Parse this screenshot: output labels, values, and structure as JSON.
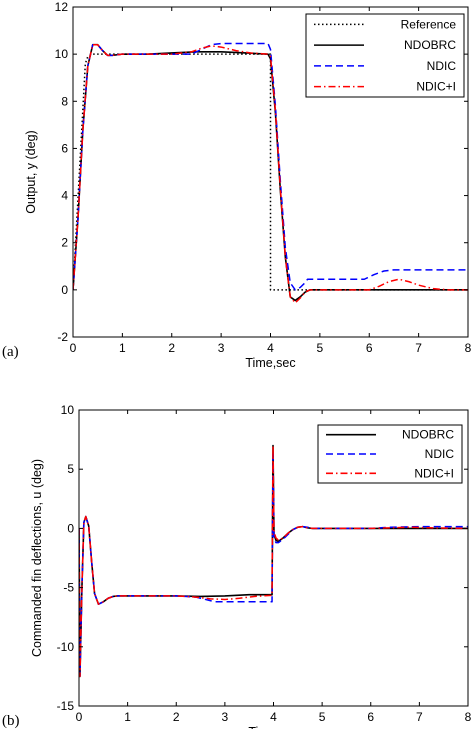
{
  "chart_data": [
    {
      "type": "line",
      "panel_label": "(a)",
      "xlabel": "Time,sec",
      "ylabel": "Output, y (deg)",
      "xlim": [
        0,
        8
      ],
      "ylim": [
        -2,
        12
      ],
      "xticks": [
        0,
        1,
        2,
        3,
        4,
        5,
        6,
        7,
        8
      ],
      "yticks": [
        -2,
        0,
        2,
        4,
        6,
        8,
        10,
        12
      ],
      "grid": false,
      "legend_position": "top-right",
      "series": [
        {
          "name": "Reference",
          "color": "#000000",
          "style": "dotted",
          "x": [
            0,
            0.25,
            0.3,
            0.4,
            0.5,
            1.0,
            2.0,
            3.0,
            4.0,
            4.0,
            5.0,
            6.0,
            7.0,
            8.0
          ],
          "y": [
            0,
            9.6,
            9.9,
            10.0,
            10.0,
            10.0,
            10.0,
            10.0,
            10.0,
            0.0,
            0.0,
            0.0,
            0.0,
            0.0
          ]
        },
        {
          "name": "NDOBRC",
          "color": "#000000",
          "style": "solid",
          "x": [
            0,
            0.1,
            0.2,
            0.3,
            0.4,
            0.5,
            0.6,
            0.7,
            0.8,
            1.0,
            1.5,
            2.0,
            2.5,
            3.0,
            3.5,
            3.95,
            4.0,
            4.1,
            4.2,
            4.3,
            4.4,
            4.5,
            4.6,
            4.7,
            4.8,
            5.0,
            5.5,
            6.0,
            6.5,
            7.0,
            7.5,
            8.0
          ],
          "y": [
            0,
            3.0,
            6.8,
            9.5,
            10.4,
            10.4,
            10.15,
            9.95,
            9.95,
            10.0,
            10.0,
            10.05,
            10.1,
            10.1,
            10.05,
            10.0,
            9.8,
            7.5,
            4.2,
            1.4,
            -0.3,
            -0.45,
            -0.3,
            -0.1,
            0.0,
            0.0,
            0.0,
            0.0,
            0.0,
            0.0,
            0.0,
            0.0
          ]
        },
        {
          "name": "NDIC",
          "color": "#0000ff",
          "style": "dashed",
          "x": [
            0,
            0.1,
            0.2,
            0.3,
            0.4,
            0.5,
            0.6,
            0.7,
            0.8,
            1.0,
            2.0,
            2.4,
            2.6,
            2.8,
            3.0,
            3.5,
            3.95,
            4.0,
            4.1,
            4.2,
            4.3,
            4.4,
            4.5,
            4.6,
            4.7,
            4.75,
            4.8,
            5.0,
            5.5,
            5.9,
            6.1,
            6.3,
            6.5,
            7.0,
            7.5,
            8.0
          ],
          "y": [
            0,
            3.0,
            6.8,
            9.5,
            10.4,
            10.4,
            10.15,
            9.95,
            9.95,
            10.0,
            10.0,
            10.0,
            10.2,
            10.4,
            10.45,
            10.45,
            10.45,
            10.2,
            7.8,
            4.6,
            1.8,
            0.3,
            0.0,
            0.1,
            0.3,
            0.45,
            0.45,
            0.45,
            0.45,
            0.45,
            0.65,
            0.8,
            0.85,
            0.85,
            0.85,
            0.85
          ]
        },
        {
          "name": "NDIC+I",
          "color": "#ff0000",
          "style": "dash-dot",
          "x": [
            0,
            0.1,
            0.2,
            0.3,
            0.4,
            0.5,
            0.6,
            0.7,
            0.8,
            1.0,
            2.0,
            2.4,
            2.6,
            2.8,
            3.0,
            3.3,
            3.6,
            3.95,
            4.0,
            4.1,
            4.2,
            4.3,
            4.4,
            4.5,
            4.6,
            4.7,
            4.8,
            5.0,
            5.5,
            6.0,
            6.2,
            6.4,
            6.6,
            6.8,
            7.0,
            7.3,
            7.6,
            8.0
          ],
          "y": [
            0,
            3.0,
            6.8,
            9.5,
            10.4,
            10.4,
            10.15,
            9.95,
            9.95,
            10.0,
            10.0,
            10.1,
            10.25,
            10.35,
            10.3,
            10.15,
            10.05,
            10.0,
            9.9,
            7.6,
            4.3,
            1.4,
            -0.3,
            -0.55,
            -0.35,
            -0.1,
            0.0,
            0.0,
            0.0,
            0.0,
            0.15,
            0.35,
            0.45,
            0.35,
            0.2,
            0.05,
            0.0,
            0.0
          ]
        }
      ]
    },
    {
      "type": "line",
      "panel_label": "(b)",
      "xlabel": "Time,sec",
      "ylabel": "Commanded fin deflections, u (deg)",
      "xlim": [
        0,
        8
      ],
      "ylim": [
        -15,
        10
      ],
      "xticks": [
        0,
        1,
        2,
        3,
        4,
        5,
        6,
        7,
        8
      ],
      "yticks": [
        -15,
        -10,
        -5,
        0,
        5,
        10
      ],
      "grid": false,
      "legend_position": "top-right",
      "series": [
        {
          "name": "NDOBRC",
          "color": "#000000",
          "style": "solid",
          "x": [
            0,
            0.02,
            0.06,
            0.1,
            0.14,
            0.2,
            0.26,
            0.32,
            0.4,
            0.5,
            0.6,
            0.7,
            0.8,
            1.0,
            1.5,
            2.0,
            2.5,
            3.0,
            3.5,
            3.97,
            3.99,
            4.01,
            4.05,
            4.1,
            4.2,
            4.3,
            4.4,
            4.5,
            4.6,
            4.7,
            4.8,
            5.0,
            6.0,
            7.0,
            8.0
          ],
          "y": [
            0,
            -12.5,
            -5.0,
            0.5,
            1.0,
            0.2,
            -2.8,
            -5.5,
            -6.4,
            -6.2,
            -5.9,
            -5.75,
            -5.7,
            -5.7,
            -5.7,
            -5.7,
            -5.75,
            -5.7,
            -5.6,
            -5.6,
            7.0,
            -0.5,
            -1.0,
            -1.1,
            -0.8,
            -0.4,
            -0.1,
            0.1,
            0.15,
            0.05,
            0.0,
            0.0,
            0.0,
            0.0,
            0.0
          ]
        },
        {
          "name": "NDIC",
          "color": "#0000ff",
          "style": "dashed",
          "x": [
            0,
            0.02,
            0.06,
            0.1,
            0.14,
            0.2,
            0.26,
            0.32,
            0.4,
            0.5,
            0.6,
            0.7,
            0.8,
            1.0,
            1.5,
            2.0,
            2.4,
            2.6,
            2.8,
            3.0,
            3.5,
            3.97,
            3.99,
            4.01,
            4.05,
            4.1,
            4.2,
            4.3,
            4.4,
            4.5,
            4.6,
            4.7,
            4.8,
            5.0,
            6.0,
            6.4,
            7.0,
            8.0
          ],
          "y": [
            0,
            -12.5,
            -5.0,
            0.5,
            1.0,
            0.2,
            -2.8,
            -5.5,
            -6.4,
            -6.2,
            -5.9,
            -5.75,
            -5.7,
            -5.7,
            -5.7,
            -5.7,
            -5.8,
            -6.0,
            -6.2,
            -6.2,
            -6.2,
            -6.2,
            6.5,
            -0.8,
            -1.2,
            -1.2,
            -0.9,
            -0.5,
            -0.1,
            0.1,
            0.15,
            0.1,
            0.0,
            0.0,
            0.0,
            0.1,
            0.15,
            0.15
          ]
        },
        {
          "name": "NDIC+I",
          "color": "#ff0000",
          "style": "dash-dot",
          "x": [
            0,
            0.02,
            0.06,
            0.1,
            0.14,
            0.2,
            0.26,
            0.32,
            0.4,
            0.5,
            0.6,
            0.7,
            0.8,
            1.0,
            1.5,
            2.0,
            2.4,
            2.7,
            3.0,
            3.3,
            3.6,
            3.97,
            3.99,
            4.01,
            4.05,
            4.1,
            4.2,
            4.3,
            4.4,
            4.5,
            4.6,
            4.7,
            4.8,
            5.0,
            6.0,
            6.4,
            6.8,
            7.2,
            8.0
          ],
          "y": [
            0,
            -12.5,
            -5.0,
            0.5,
            1.0,
            0.2,
            -2.8,
            -5.5,
            -6.4,
            -6.2,
            -5.9,
            -5.75,
            -5.7,
            -5.7,
            -5.7,
            -5.7,
            -5.8,
            -5.95,
            -6.0,
            -5.9,
            -5.75,
            -5.65,
            7.0,
            -0.3,
            -0.8,
            -1.0,
            -0.8,
            -0.4,
            -0.1,
            0.1,
            0.15,
            0.05,
            0.0,
            0.0,
            0.0,
            0.05,
            0.1,
            0.05,
            0.0
          ]
        }
      ]
    }
  ]
}
